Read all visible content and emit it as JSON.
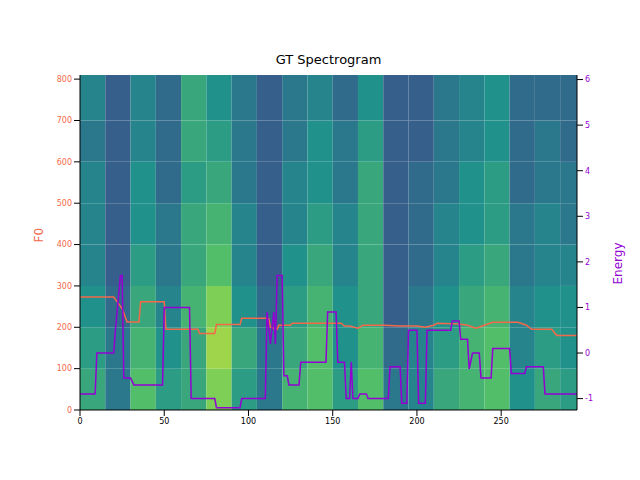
{
  "chart_data": {
    "type": "line",
    "title": "GT Spectrogram",
    "ylabel": "F0",
    "y2label": "Energy",
    "xlim": [
      0,
      295
    ],
    "xticks": [
      0,
      50,
      100,
      150,
      200,
      250
    ],
    "ylim": [
      0,
      810
    ],
    "yticks": [
      0,
      100,
      200,
      300,
      400,
      500,
      600,
      700,
      800
    ],
    "y2lim": [
      -1.25,
      6.1
    ],
    "y2ticks": [
      -1,
      0,
      1,
      2,
      3,
      4,
      5,
      6
    ],
    "spectrogram": {
      "x_edges": [
        0,
        15,
        30,
        45,
        60,
        75,
        90,
        105,
        120,
        135,
        150,
        165,
        180,
        195,
        210,
        225,
        240,
        255,
        270,
        285,
        295
      ],
      "y_edges": [
        0,
        100,
        200,
        300,
        400,
        500,
        600,
        700,
        810
      ],
      "color_range": [
        0,
        1
      ],
      "cells": [
        [
          0.6,
          0.4,
          0.7,
          0.55,
          0.6,
          0.8,
          0.55,
          0.4,
          0.65,
          0.7,
          0.55,
          0.7,
          0.4,
          0.45,
          0.6,
          0.65,
          0.7,
          0.5,
          0.6,
          0.55
        ],
        [
          0.55,
          0.4,
          0.65,
          0.5,
          0.6,
          0.85,
          0.6,
          0.4,
          0.6,
          0.7,
          0.5,
          0.65,
          0.35,
          0.45,
          0.55,
          0.65,
          0.7,
          0.45,
          0.55,
          0.5
        ],
        [
          0.5,
          0.35,
          0.6,
          0.45,
          0.65,
          0.8,
          0.5,
          0.35,
          0.55,
          0.65,
          0.5,
          0.6,
          0.3,
          0.4,
          0.5,
          0.6,
          0.65,
          0.45,
          0.5,
          0.5
        ],
        [
          0.45,
          0.3,
          0.55,
          0.4,
          0.6,
          0.7,
          0.45,
          0.3,
          0.5,
          0.6,
          0.45,
          0.6,
          0.3,
          0.35,
          0.45,
          0.55,
          0.6,
          0.4,
          0.45,
          0.45
        ],
        [
          0.45,
          0.3,
          0.5,
          0.4,
          0.6,
          0.65,
          0.45,
          0.3,
          0.45,
          0.55,
          0.45,
          0.6,
          0.3,
          0.35,
          0.45,
          0.5,
          0.55,
          0.4,
          0.45,
          0.4
        ],
        [
          0.45,
          0.3,
          0.5,
          0.35,
          0.55,
          0.6,
          0.4,
          0.3,
          0.45,
          0.5,
          0.4,
          0.6,
          0.3,
          0.35,
          0.4,
          0.5,
          0.55,
          0.35,
          0.4,
          0.4
        ],
        [
          0.4,
          0.3,
          0.45,
          0.35,
          0.6,
          0.55,
          0.4,
          0.3,
          0.4,
          0.5,
          0.4,
          0.55,
          0.3,
          0.3,
          0.4,
          0.45,
          0.5,
          0.35,
          0.4,
          0.35
        ],
        [
          0.45,
          0.3,
          0.45,
          0.35,
          0.6,
          0.5,
          0.4,
          0.3,
          0.4,
          0.45,
          0.35,
          0.5,
          0.3,
          0.3,
          0.4,
          0.45,
          0.5,
          0.35,
          0.35,
          0.35
        ]
      ]
    },
    "series": [
      {
        "color": "#f4694a",
        "x": [
          0,
          20,
          22,
          25,
          28,
          35,
          36,
          50,
          51,
          70,
          71,
          80,
          81,
          95,
          96,
          112,
          113,
          117,
          118,
          125,
          126,
          150,
          155,
          157,
          160,
          165,
          168,
          180,
          190,
          200,
          205,
          210,
          212,
          225,
          230,
          235,
          240,
          245,
          260,
          265,
          268,
          280,
          283,
          295
        ],
        "values": [
          273,
          273,
          262,
          245,
          213,
          213,
          262,
          262,
          195,
          195,
          185,
          185,
          207,
          207,
          222,
          222,
          200,
          195,
          205,
          205,
          210,
          210,
          210,
          203,
          203,
          198,
          205,
          205,
          203,
          203,
          200,
          205,
          210,
          208,
          205,
          198,
          205,
          212,
          212,
          205,
          195,
          195,
          180,
          180
        ]
      },
      {
        "color": "#9400d3",
        "axis": "y2",
        "x": [
          0,
          9,
          10,
          20,
          21,
          24,
          25,
          26,
          30,
          32,
          49,
          50,
          65,
          66,
          80,
          81,
          95,
          96,
          110,
          111,
          113,
          115,
          116,
          117,
          120,
          121,
          123,
          124,
          130,
          131,
          146,
          147,
          152,
          153,
          157,
          158,
          160,
          161,
          162,
          165,
          166,
          170,
          171,
          183,
          184,
          190,
          191,
          194,
          195,
          200,
          201,
          205,
          206,
          220,
          221,
          225,
          226,
          230,
          231,
          233,
          237,
          238,
          244,
          245,
          255,
          256,
          264,
          265,
          275,
          276,
          295
        ],
        "values": [
          -0.9,
          -0.9,
          0.0,
          0.0,
          0.5,
          1.7,
          1.7,
          -0.55,
          -0.55,
          -0.7,
          -0.7,
          1.0,
          1.0,
          -1.0,
          -1.0,
          -1.2,
          -1.2,
          -1.0,
          -1.0,
          0.9,
          0.2,
          0.9,
          0.2,
          1.7,
          1.7,
          -0.5,
          -0.5,
          -0.7,
          -0.7,
          -0.2,
          -0.2,
          0.9,
          0.9,
          -0.2,
          -0.2,
          -1.0,
          -1.0,
          -0.2,
          -1.0,
          -1.0,
          -0.9,
          -0.9,
          -1.0,
          -1.0,
          -0.3,
          -0.3,
          -1.1,
          -1.1,
          0.5,
          0.5,
          -1.1,
          -1.1,
          0.5,
          0.5,
          0.7,
          0.7,
          0.3,
          0.3,
          -0.35,
          0.0,
          0.0,
          -0.55,
          -0.55,
          0.1,
          0.1,
          -0.45,
          -0.45,
          -0.3,
          -0.3,
          -0.9,
          -0.9
        ]
      }
    ]
  }
}
